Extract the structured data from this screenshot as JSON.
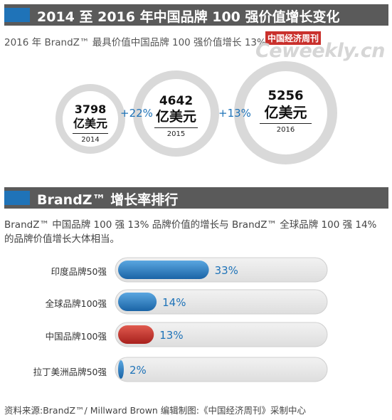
{
  "sections": {
    "top": {
      "title": "2014 至 2016 年中国品牌 100 强价值增长变化"
    },
    "bottom": {
      "title": "BrandZ™ 增长率排行"
    }
  },
  "top_subtitle": "2016 年 BrandZ™ 最具价值中国品牌 100 强价值增长 13%",
  "watermark": {
    "cn": "中国经济周刊",
    "en": "Ceweekly.cn"
  },
  "description": "BrandZ™ 中国品牌 100 强 13% 品牌价值的增长与 BrandZ™ 全球品牌 100 强 14% 的品牌价值增长大体相当。",
  "chart_data": [
    {
      "type": "bubble",
      "unit": "亿美元",
      "points": [
        {
          "year": "2014",
          "value": 3798
        },
        {
          "year": "2015",
          "value": 4642
        },
        {
          "year": "2016",
          "value": 5256
        }
      ],
      "growth_labels": [
        "+22%",
        "+13%"
      ]
    },
    {
      "type": "bar",
      "orientation": "horizontal",
      "categories": [
        "印度品牌50强",
        "全球品牌100强",
        "中国品牌100强",
        "拉丁美洲品牌50强"
      ],
      "values": [
        33,
        14,
        13,
        2
      ],
      "value_labels": [
        "33%",
        "14%",
        "13%",
        "2%"
      ],
      "colors": [
        "#1f73b8",
        "#1f73b8",
        "#c9302c",
        "#1f73b8"
      ]
    }
  ],
  "footer": "资料来源:BrandZ™/ Millward Brown   编辑制图:《中国经济周刊》采制中心",
  "colors": {
    "section_bar": "#5a5a5a",
    "accent": "#1f73b8",
    "ring": "#d9d9d9",
    "track": "#e6e6e6",
    "highlight": "#c9302c"
  }
}
